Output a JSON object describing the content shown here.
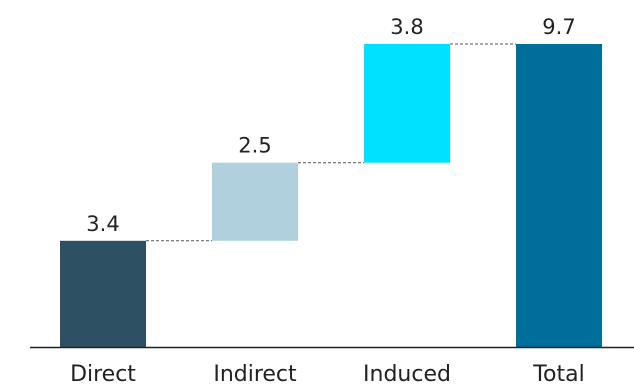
{
  "chart_data": {
    "type": "bar",
    "subtype": "waterfall",
    "categories": [
      "Direct",
      "Indirect",
      "Induced",
      "Total"
    ],
    "values": [
      3.4,
      2.5,
      3.8,
      9.7
    ],
    "value_labels": [
      "3.4",
      "2.5",
      "3.8",
      "9.7"
    ],
    "bar_roles": [
      "increment",
      "increment",
      "increment",
      "total"
    ],
    "ylim": [
      0,
      9.7
    ],
    "grid": false,
    "legend": "none",
    "connectors": "dashed",
    "colors": [
      "#2e5063",
      "#afd0dc",
      "#00e1ff",
      "#006e9a"
    ],
    "axis_color": "#222222",
    "connector_color": "#555555"
  }
}
